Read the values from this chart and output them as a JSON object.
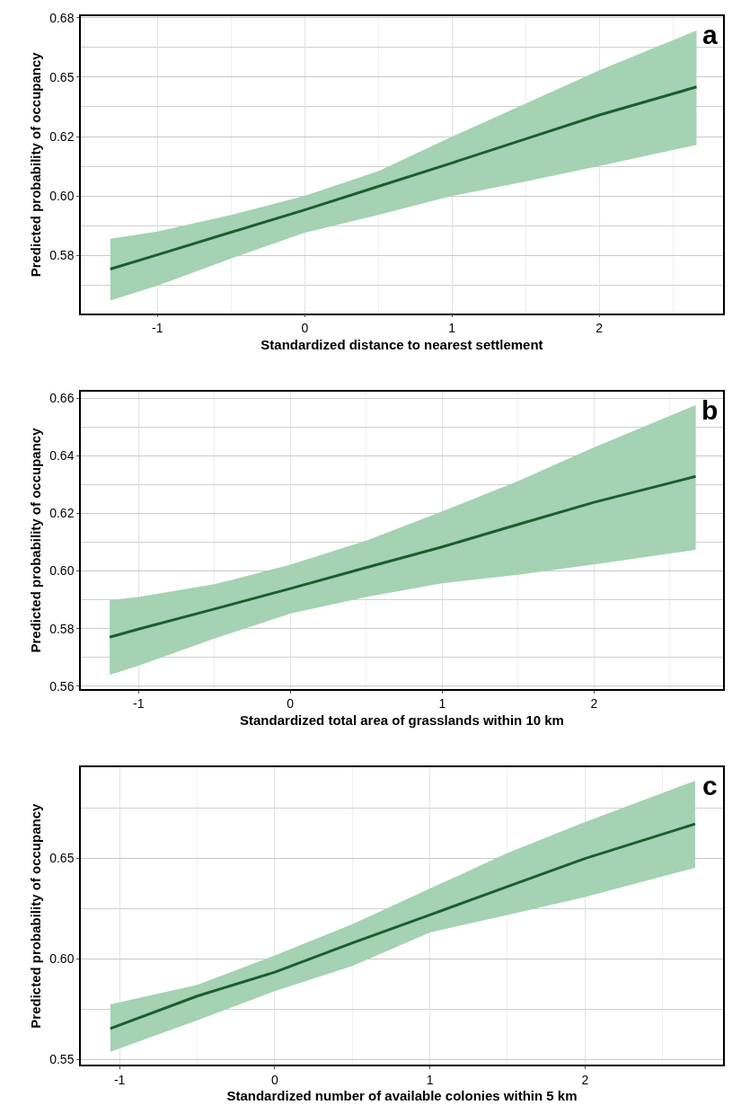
{
  "chart_data": [
    {
      "type": "line",
      "xlabel": "Standardized distance to nearest settlement",
      "ylabel": "Predicted probability of occupancy",
      "annotations": [
        "a"
      ],
      "series": [
        {
          "color": "#1a5e2e",
          "x": [
            -1.32,
            -1,
            -0.5,
            0,
            0.5,
            1,
            1.5,
            2,
            2.66
          ],
          "values": [
            0.5692,
            0.5752,
            0.5847,
            0.5941,
            0.604,
            0.6139,
            0.624,
            0.6341,
            0.6459
          ],
          "lower": [
            0.556,
            0.5622,
            0.5736,
            0.5845,
            0.592,
            0.6,
            0.6061,
            0.6126,
            0.6215
          ],
          "upper": [
            0.582,
            0.585,
            0.592,
            0.6,
            0.6104,
            0.625,
            0.6389,
            0.6529,
            0.6696
          ]
        }
      ],
      "xlim": [
        -1.52,
        2.84
      ],
      "xticks": [
        -1,
        0,
        1,
        2
      ],
      "ylim": [
        0.5506,
        0.6757
      ],
      "yticks": [
        {
          "value": 0.575,
          "label": "0.58"
        },
        {
          "value": 0.6,
          "label": "0.60"
        },
        {
          "value": 0.625,
          "label": "0.62"
        },
        {
          "value": 0.65,
          "label": "0.65"
        },
        {
          "value": 0.675,
          "label": "0.68"
        }
      ],
      "grid": true
    },
    {
      "type": "line",
      "xlabel": "Standardized total area of grasslands within 10 km",
      "ylabel": "Predicted probability of occupancy",
      "annotations": [
        "b"
      ],
      "series": [
        {
          "color": "#1a5e2e",
          "x": [
            -1.19,
            -1,
            -0.5,
            0,
            0.5,
            1,
            1.5,
            2,
            2.67
          ],
          "values": [
            0.577,
            0.5798,
            0.5868,
            0.5939,
            0.6012,
            0.6084,
            0.6162,
            0.6239,
            0.6329
          ],
          "lower": [
            0.5639,
            0.5671,
            0.5765,
            0.5852,
            0.591,
            0.5957,
            0.5987,
            0.6023,
            0.6074
          ],
          "upper": [
            0.5899,
            0.591,
            0.5954,
            0.6022,
            0.6106,
            0.6207,
            0.6313,
            0.643,
            0.6577
          ]
        }
      ],
      "xlim": [
        -1.38,
        2.85
      ],
      "xticks": [
        -1,
        0,
        1,
        2
      ],
      "ylim": [
        0.559,
        0.6623
      ],
      "yticks": [
        {
          "value": 0.56,
          "label": "0.56"
        },
        {
          "value": 0.58,
          "label": "0.58"
        },
        {
          "value": 0.6,
          "label": "0.60"
        },
        {
          "value": 0.62,
          "label": "0.62"
        },
        {
          "value": 0.64,
          "label": "0.64"
        },
        {
          "value": 0.66,
          "label": "0.66"
        }
      ],
      "grid": true
    },
    {
      "type": "line",
      "xlabel": "Standardized number of available colonies within 5 km",
      "ylabel": "Predicted probability of occupancy",
      "annotations": [
        "c"
      ],
      "series": [
        {
          "color": "#1a5e2e",
          "x": [
            -1.06,
            -0.5,
            0,
            0.5,
            1,
            1.5,
            2,
            2.71
          ],
          "values": [
            0.5654,
            0.5815,
            0.5934,
            0.6079,
            0.6218,
            0.6359,
            0.6498,
            0.667
          ],
          "lower": [
            0.5539,
            0.5695,
            0.584,
            0.5965,
            0.6131,
            0.6218,
            0.6307,
            0.6452
          ],
          "upper": [
            0.5774,
            0.5871,
            0.6017,
            0.6172,
            0.6349,
            0.6525,
            0.668,
            0.6884
          ]
        }
      ],
      "xlim": [
        -1.25,
        2.89
      ],
      "xticks": [
        -1,
        0,
        1,
        2
      ],
      "ylim": [
        0.5475,
        0.695
      ],
      "yticks": [
        {
          "value": 0.55,
          "label": "0.55"
        },
        {
          "value": 0.6,
          "label": "0.60"
        },
        {
          "value": 0.65,
          "label": "0.65"
        }
      ],
      "grid": true
    }
  ]
}
